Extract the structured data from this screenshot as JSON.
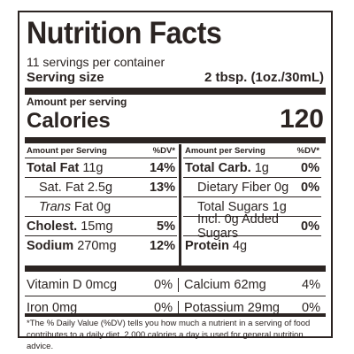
{
  "label": {
    "title": "Nutrition Facts",
    "servings": "11 servings per container",
    "serving_size_label": "Serving size",
    "serving_size_value": "2 tbsp. (1oz./30mL)",
    "amount_per_serving": "Amount per serving",
    "calories_label": "Calories",
    "calories_value": "120"
  },
  "left_col": {
    "header_left": "Amount per Serving",
    "header_right": "%DV*",
    "rows": [
      {
        "name": "Total Fat",
        "amount": "11g",
        "dv": "14%"
      },
      {
        "name": "Sat. Fat",
        "amount": "2.5g",
        "dv": "13%"
      },
      {
        "name": "Trans",
        "amount": "Fat 0g",
        "dv": ""
      },
      {
        "name": "Cholest.",
        "amount": "15mg",
        "dv": "5%"
      },
      {
        "name": "Sodium",
        "amount": "270mg",
        "dv": "12%"
      }
    ]
  },
  "right_col": {
    "header_left": "Amount per Serving",
    "header_right": "%DV*",
    "rows": [
      {
        "name": "Total Carb.",
        "amount": "1g",
        "dv": "0%"
      },
      {
        "name": "Dietary Fiber",
        "amount": "0g",
        "dv": "0%"
      },
      {
        "name": "Total Sugars",
        "amount": "1g",
        "dv": ""
      },
      {
        "name": "Incl. 0g Added Sugars",
        "amount": "",
        "dv": "0%"
      },
      {
        "name": "Protein",
        "amount": "4g",
        "dv": ""
      }
    ]
  },
  "vitamins": [
    {
      "left_name": "Vitamin D 0mcg",
      "left_dv": "0%",
      "right_name": "Calcium 62mg",
      "right_dv": "4%"
    },
    {
      "left_name": "Iron 0mg",
      "left_dv": "0%",
      "right_name": "Potassium 29mg",
      "right_dv": "0%"
    }
  ],
  "footnote": "*The % Daily Value (%DV) tells you how much a nutrient in a serving of food contributes to a daily diet. 2,000 calories a day is used for general nutrition advice.",
  "colors": {
    "ink": "#2b2422",
    "background": "#ffffff"
  }
}
